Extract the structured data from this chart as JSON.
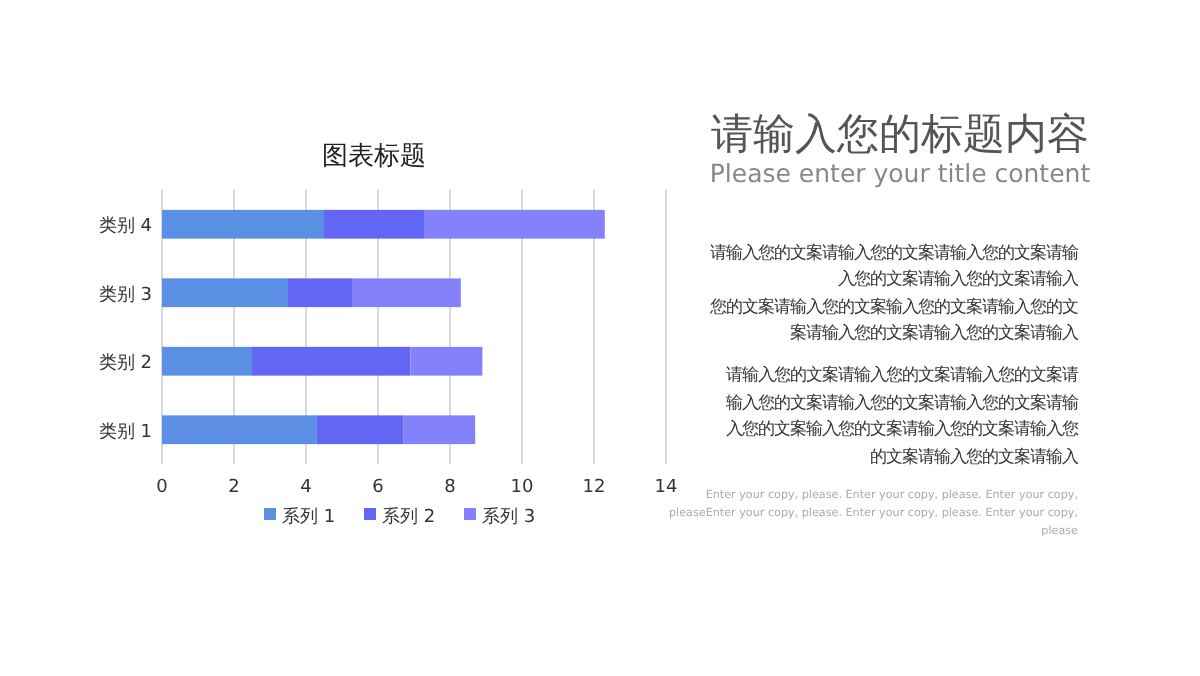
{
  "chart_data": [
    {
      "type": "bar",
      "orientation": "horizontal",
      "stacked": true,
      "title": "图表标题",
      "categories": [
        "类别 4",
        "类别 3",
        "类别 2",
        "类别 1"
      ],
      "series": [
        {
          "name": "系列 1",
          "color": "#5b8fe3",
          "values": [
            4.5,
            3.5,
            2.5,
            4.3
          ]
        },
        {
          "name": "系列 2",
          "color": "#6366f5",
          "values": [
            2.8,
            1.8,
            4.4,
            2.4
          ]
        },
        {
          "name": "系列 3",
          "color": "#8482fa",
          "values": [
            5.0,
            3.0,
            2.0,
            2.0
          ]
        }
      ],
      "xlim": [
        0,
        14
      ],
      "xticks": [
        0,
        2,
        4,
        6,
        8,
        10,
        12,
        14
      ],
      "grid": "x",
      "legend": "bottom"
    },
    {
      "type": "other",
      "title": "请输入您的标题内容",
      "subtitle": "Please enter your title content",
      "annotations": [
        "请输入您的文案请输入您的文案请输入您的文案请输",
        "入您的文案请输入您的文案请输入",
        "您的文案请输入您的文案输入您的文案请输入您的文",
        "案请输入您的文案请输入您的文案请输入",
        "请输入您的文案请输入您的文案请输入您的文案请",
        "输入您的文案请输入您的文案请输入您的文案请输",
        "入您的文案输入您的文案请输入您的文案请输入您",
        "的文案请输入您的文案请输入",
        "Enter your copy, please. Enter your copy, please. Enter your copy,",
        "pleaseEnter your copy, please. Enter your copy, please. Enter your copy,",
        "please"
      ]
    }
  ]
}
